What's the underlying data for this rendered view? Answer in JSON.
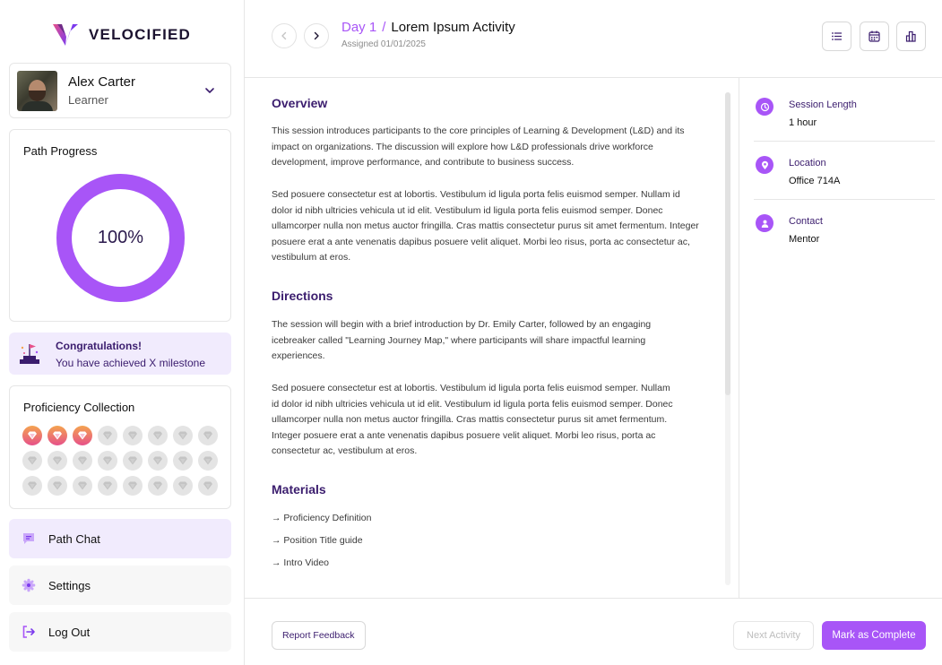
{
  "brand": {
    "name": "VELOCIFIED",
    "accent": "#a855f7",
    "dark": "#3b1d6e"
  },
  "user": {
    "name": "Alex Carter",
    "role": "Learner"
  },
  "progress": {
    "title": "Path Progress",
    "value_label": "100%",
    "fraction": 1.0
  },
  "milestone": {
    "title": "Congratulations!",
    "message": "You have achieved X milestone"
  },
  "proficiency": {
    "title": "Proficiency Collection",
    "earned": 3,
    "total": 24
  },
  "nav": {
    "chat": "Path Chat",
    "settings": "Settings",
    "logout": "Log Out"
  },
  "header": {
    "day": "Day 1",
    "separator": "/",
    "title": "Lorem Ipsum Activity",
    "assigned": "Assigned 01/01/2025"
  },
  "overview": {
    "heading": "Overview",
    "p1": "This session introduces participants to the core principles of Learning & Development (L&D) and its impact on organizations. The discussion will explore how L&D professionals drive workforce development, improve performance, and contribute to business success.",
    "p2": "Sed posuere consectetur est at lobortis. Vestibulum id ligula porta felis euismod semper. Nullam id dolor id nibh ultricies vehicula ut id elit. Vestibulum id ligula porta felis euismod semper.  Donec ullamcorper nulla non metus auctor fringilla. Cras mattis consectetur purus sit amet fermentum. Integer posuere erat a ante venenatis dapibus posuere velit aliquet. Morbi leo risus, porta ac consectetur ac, vestibulum at eros."
  },
  "directions": {
    "heading": "Directions",
    "p1": "The session will begin with a brief introduction by Dr. Emily Carter, followed by an engaging icebreaker called \"Learning Journey Map,\" where participants will share impactful learning experiences.",
    "p2": "Sed posuere consectetur est at lobortis. Vestibulum id ligula porta felis euismod semper. Nullam id dolor id nibh ultricies vehicula ut id elit. Vestibulum id ligula porta felis euismod semper.  Donec ullamcorper nulla non metus auctor fringilla. Cras mattis consectetur purus sit amet fermentum. Integer posuere erat a ante venenatis dapibus posuere velit aliquet. Morbi leo risus, porta ac consectetur ac, vestibulum at eros."
  },
  "materials": {
    "heading": "Materials",
    "items": [
      "→ Proficiency Definition",
      "→ Position Title guide",
      "→ Intro Video"
    ]
  },
  "info": {
    "session_label": "Session Length",
    "session_value": "1 hour",
    "location_label": "Location",
    "location_value": "Office 714A",
    "contact_label": "Contact",
    "contact_value": "Mentor"
  },
  "footer": {
    "feedback": "Report Feedback",
    "next": "Next Activity",
    "complete": "Mark as Complete"
  }
}
